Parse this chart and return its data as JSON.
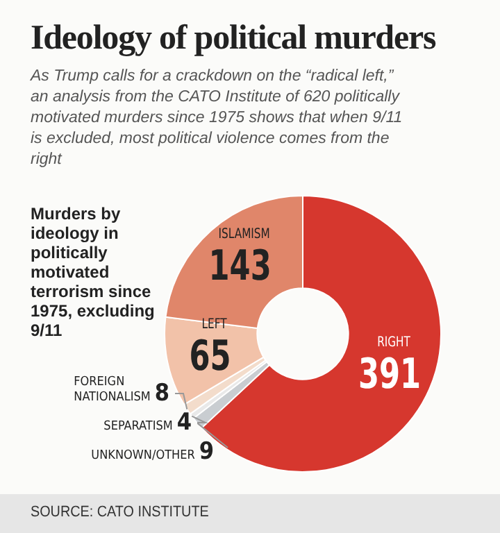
{
  "chart_data": {
    "type": "donut",
    "title": "Ideology of political murders",
    "subtitle": "As Trump calls for a crackdown on the “radical left,” an analysis from the CATO Institute of 620 politically motivated murders since 1975 shows that when 9/11 is excluded, most political violence comes from the right",
    "categories": [
      "RIGHT",
      "UNKNOWN/OTHER",
      "SEPARATISM",
      "FOREIGN NATIONALISM",
      "LEFT",
      "ISLAMISM"
    ],
    "values": [
      391,
      9,
      4,
      8,
      65,
      143
    ],
    "colors": [
      "#d6372e",
      "#c9cdd1",
      "#e9e9e9",
      "#f3dccb",
      "#f2c2a9",
      "#e0866a"
    ],
    "data_labels": true,
    "legend": false,
    "annotations": [
      "Murders by ideology in politically motivated terrorism since 1975, excluding 9/11",
      "SOURCE: CATO INSTITUTE"
    ]
  }
}
